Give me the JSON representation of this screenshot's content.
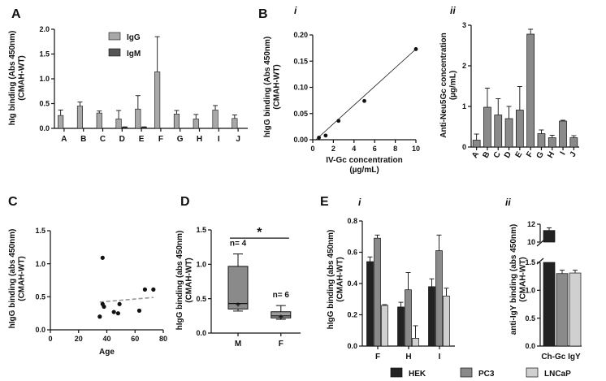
{
  "chart_data": [
    {
      "panel": "A",
      "type": "bar",
      "ylabel_lines": [
        "hIg binding (Abs 450nm)",
        "(CMAH-WT)"
      ],
      "categories": [
        "A",
        "B",
        "C",
        "D",
        "E",
        "F",
        "G",
        "H",
        "I",
        "J"
      ],
      "ylim": [
        0,
        2.0
      ],
      "yticks": [
        "0.0",
        "0.5",
        "1.0",
        "1.5",
        "2.0"
      ],
      "legend": [
        "IgG",
        "IgM"
      ],
      "series": [
        {
          "name": "IgG",
          "color": "#a8a8a8",
          "values": [
            0.26,
            0.45,
            0.31,
            0.19,
            0.39,
            1.14,
            0.29,
            0.19,
            0.37,
            0.2
          ],
          "errors": [
            0.11,
            0.08,
            0.04,
            0.17,
            0.27,
            0.71,
            0.07,
            0.09,
            0.09,
            0.07
          ]
        },
        {
          "name": "IgM",
          "color": "#555555",
          "values": [
            0,
            0,
            0,
            0.02,
            0.02,
            0,
            0,
            0,
            0,
            0
          ],
          "errors": [
            0,
            0,
            0,
            0.01,
            0.01,
            0,
            0,
            0,
            0,
            0
          ]
        }
      ]
    },
    {
      "panel": "B",
      "subpanel": "i",
      "type": "scatter",
      "xlabel_lines": [
        "IV-Gc concentration",
        "(µg/mL)"
      ],
      "ylabel_lines": [
        "hIgG binding (Abs 450nm)",
        "(CMAH-WT)"
      ],
      "xlim": [
        0,
        10
      ],
      "ylim": [
        0,
        0.2
      ],
      "xticks": [
        "0",
        "2",
        "4",
        "6",
        "8",
        "10"
      ],
      "yticks": [
        "0.00",
        "0.05",
        "0.10",
        "0.15",
        "0.20"
      ],
      "x": [
        0.6,
        1.25,
        2.5,
        5,
        10
      ],
      "y": [
        0.004,
        0.008,
        0.036,
        0.074,
        0.173
      ],
      "fit": [
        [
          0.3,
          0.0
        ],
        [
          10,
          0.173
        ]
      ]
    },
    {
      "panel": "B",
      "subpanel": "ii",
      "type": "bar",
      "ylabel_lines": [
        "Anti-Neu5Gc concentration",
        "(µg/mL)"
      ],
      "categories": [
        "A",
        "B",
        "C",
        "D",
        "E",
        "F",
        "G",
        "H",
        "I",
        "J"
      ],
      "ylim": [
        0,
        3
      ],
      "yticks": [
        "0",
        "1",
        "2",
        "3"
      ],
      "series": [
        {
          "name": "Anti-Neu5Gc",
          "color": "#8a8a8a",
          "values": [
            0.17,
            0.98,
            0.79,
            0.7,
            0.91,
            2.78,
            0.33,
            0.23,
            0.64,
            0.23
          ],
          "errors": [
            0.15,
            0.47,
            0.4,
            0.3,
            0.58,
            0.12,
            0.09,
            0.06,
            0.02,
            0.05
          ]
        }
      ]
    },
    {
      "panel": "C",
      "type": "scatter",
      "xlabel": "Age",
      "ylabel_lines": [
        "hIgG binding (abs 450nm)",
        "(CMAH-WT)"
      ],
      "xlim": [
        0,
        80
      ],
      "ylim": [
        0,
        1.5
      ],
      "xticks": [
        "0",
        "20",
        "40",
        "60",
        "80"
      ],
      "yticks": [
        "0.0",
        "0.5",
        "1.0",
        "1.5"
      ],
      "x": [
        35,
        37,
        37,
        38,
        45,
        48,
        49,
        63,
        67,
        73
      ],
      "y": [
        0.2,
        1.09,
        0.39,
        0.35,
        0.27,
        0.25,
        0.39,
        0.29,
        0.61,
        0.61
      ],
      "trend": [
        [
          35,
          0.42
        ],
        [
          73,
          0.49
        ]
      ]
    },
    {
      "panel": "D",
      "type": "box",
      "ylabel_lines": [
        "hIgG binding (abs 450nm)",
        "(CMAH-WT)"
      ],
      "categories": [
        "M",
        "F"
      ],
      "ylim": [
        0,
        1.5
      ],
      "yticks": [
        "0.0",
        "0.5",
        "1.0",
        "1.5"
      ],
      "boxes": [
        {
          "label": "M",
          "color": "#8a8a8a",
          "min": 0.32,
          "q1": 0.35,
          "median": 0.43,
          "q3": 0.97,
          "max": 1.15,
          "mean": 0.42,
          "n": "n= 4"
        },
        {
          "label": "F",
          "color": "#9c9c9c",
          "min": 0.2,
          "q1": 0.22,
          "median": 0.25,
          "q3": 0.31,
          "max": 0.4,
          "mean": 0.24,
          "n": "n= 6"
        }
      ],
      "significance": "*"
    },
    {
      "panel": "E",
      "subpanel": "i",
      "type": "bar",
      "ylabel_lines": [
        "hIgG binding (abs 450nm)",
        "(CMAH-WT)"
      ],
      "categories": [
        "F",
        "H",
        "I"
      ],
      "ylim": [
        0,
        0.8
      ],
      "yticks": [
        "0.0",
        "0.2",
        "0.4",
        "0.6",
        "0.8"
      ],
      "series": [
        {
          "name": "HEK",
          "color": "#222222",
          "values": [
            0.54,
            0.25,
            0.38
          ],
          "errors": [
            0.03,
            0.03,
            0.05
          ]
        },
        {
          "name": "PC3",
          "color": "#8a8a8a",
          "values": [
            0.69,
            0.36,
            0.61
          ],
          "errors": [
            0.02,
            0.11,
            0.1
          ]
        },
        {
          "name": "LNCaP",
          "color": "#d0d0d0",
          "values": [
            0.26,
            0.05,
            0.32
          ],
          "errors": [
            0.005,
            0.08,
            0.05
          ]
        }
      ]
    },
    {
      "panel": "E",
      "subpanel": "ii",
      "type": "bar",
      "ylabel_lines": [
        "anti-IgY binding (abs 450nm)",
        "(CMAH-WT)"
      ],
      "xlabel": "Ch-Gc IgY",
      "axis_break": true,
      "lower_ylim": [
        0,
        1.5
      ],
      "upper_ylim": [
        10,
        12
      ],
      "lower_yticks": [
        "0.0",
        "0.5",
        "1.0",
        "1.5"
      ],
      "upper_yticks": [
        "10",
        "12"
      ],
      "series": [
        {
          "name": "HEK",
          "color": "#222222",
          "values": [
            11.3
          ],
          "errors": [
            0.3
          ]
        },
        {
          "name": "PC3",
          "color": "#8a8a8a",
          "values": [
            1.3
          ],
          "errors": [
            0.06
          ]
        },
        {
          "name": "LNCaP",
          "color": "#d0d0d0",
          "values": [
            1.31
          ],
          "errors": [
            0.05
          ]
        }
      ]
    }
  ],
  "panel_labels": {
    "A": "A",
    "B": "B",
    "C": "C",
    "D": "D",
    "E": "E",
    "Bi": "i",
    "Bii": "ii",
    "Ei": "i",
    "Eii": "ii"
  },
  "legend_E": [
    {
      "label": "HEK",
      "color": "#222222"
    },
    {
      "label": "PC3",
      "color": "#8a8a8a"
    },
    {
      "label": "LNCaP",
      "color": "#d0d0d0"
    }
  ]
}
